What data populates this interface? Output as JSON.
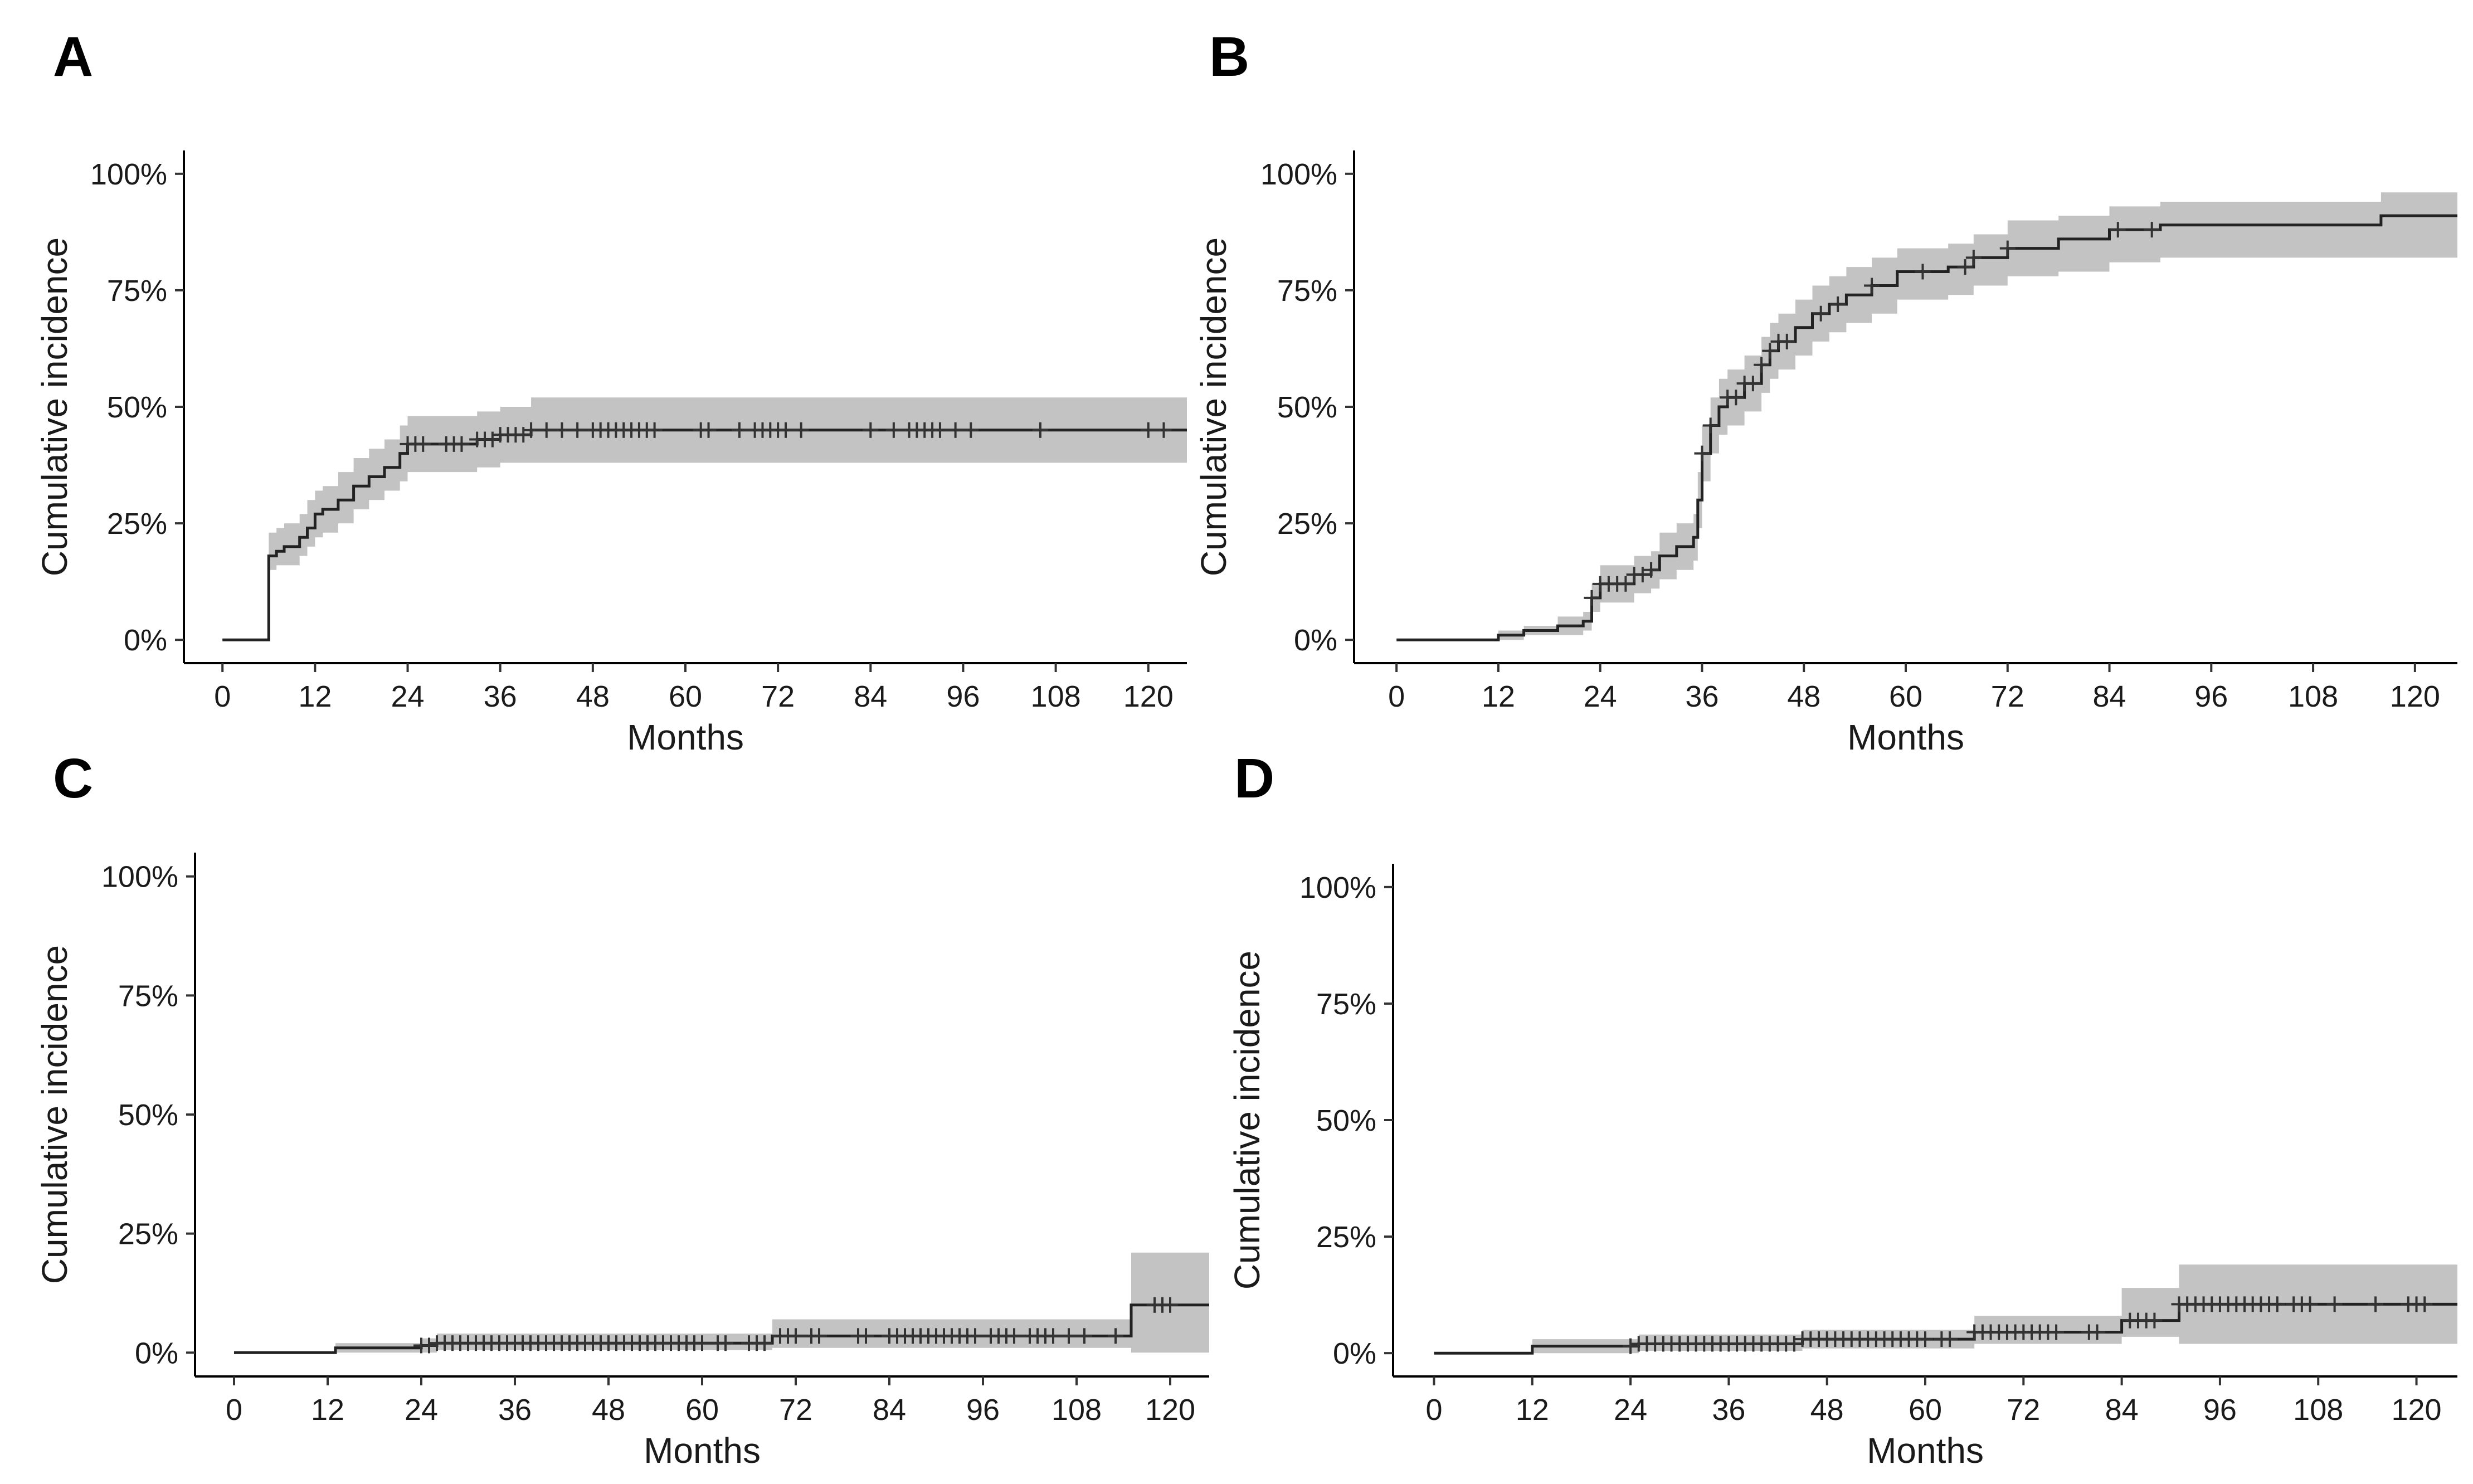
{
  "figure": {
    "panels": [
      "A",
      "B",
      "C",
      "D"
    ]
  },
  "chart_data": [
    {
      "panel": "A",
      "type": "line",
      "subtype": "step with confidence band",
      "xlabel": "Months",
      "ylabel": "Cumulative incidence",
      "xlim": [
        -5,
        125
      ],
      "ylim": [
        -0.05,
        1.05
      ],
      "x_ticks": [
        0,
        12,
        24,
        36,
        48,
        60,
        72,
        84,
        96,
        108,
        120
      ],
      "y_ticks": [
        0,
        0.25,
        0.5,
        0.75,
        1.0
      ],
      "y_tick_labels": [
        "0%",
        "25%",
        "50%",
        "75%",
        "100%"
      ],
      "x_end": 125,
      "steps": [
        [
          0,
          0
        ],
        [
          6,
          0.18
        ],
        [
          7,
          0.19
        ],
        [
          8,
          0.2
        ],
        [
          10,
          0.22
        ],
        [
          11,
          0.24
        ],
        [
          12,
          0.27
        ],
        [
          13,
          0.28
        ],
        [
          15,
          0.3
        ],
        [
          17,
          0.33
        ],
        [
          19,
          0.35
        ],
        [
          21,
          0.37
        ],
        [
          23,
          0.4
        ],
        [
          24,
          0.42
        ],
        [
          33,
          0.43
        ],
        [
          36,
          0.44
        ],
        [
          40,
          0.45
        ]
      ],
      "lower": [
        [
          0,
          0
        ],
        [
          6,
          0.15
        ],
        [
          7,
          0.16
        ],
        [
          8,
          0.16
        ],
        [
          10,
          0.18
        ],
        [
          11,
          0.2
        ],
        [
          12,
          0.22
        ],
        [
          13,
          0.23
        ],
        [
          15,
          0.25
        ],
        [
          17,
          0.28
        ],
        [
          19,
          0.3
        ],
        [
          21,
          0.32
        ],
        [
          23,
          0.34
        ],
        [
          24,
          0.36
        ],
        [
          33,
          0.37
        ],
        [
          36,
          0.38
        ],
        [
          40,
          0.38
        ]
      ],
      "upper": [
        [
          0,
          0
        ],
        [
          6,
          0.23
        ],
        [
          7,
          0.24
        ],
        [
          8,
          0.25
        ],
        [
          10,
          0.27
        ],
        [
          11,
          0.3
        ],
        [
          12,
          0.32
        ],
        [
          13,
          0.33
        ],
        [
          15,
          0.36
        ],
        [
          17,
          0.39
        ],
        [
          19,
          0.41
        ],
        [
          21,
          0.43
        ],
        [
          23,
          0.46
        ],
        [
          24,
          0.48
        ],
        [
          33,
          0.49
        ],
        [
          36,
          0.5
        ],
        [
          40,
          0.52
        ]
      ],
      "censor_times": [
        24,
        25,
        26,
        29,
        30,
        31,
        33,
        34,
        35,
        36,
        37,
        38,
        39,
        40,
        42,
        44,
        46,
        48,
        49,
        50,
        51,
        52,
        53,
        54,
        55,
        56,
        62,
        63,
        67,
        69,
        70,
        71,
        72,
        73,
        75,
        84,
        87,
        89,
        90,
        91,
        92,
        93,
        95,
        97,
        106,
        120,
        122
      ]
    },
    {
      "panel": "B",
      "type": "line",
      "subtype": "step with confidence band",
      "xlabel": "Months",
      "ylabel": "Cumulative incidence",
      "xlim": [
        -5,
        125
      ],
      "ylim": [
        -0.05,
        1.05
      ],
      "x_ticks": [
        0,
        12,
        24,
        36,
        48,
        60,
        72,
        84,
        96,
        108,
        120
      ],
      "y_ticks": [
        0,
        0.25,
        0.5,
        0.75,
        1.0
      ],
      "y_tick_labels": [
        "0%",
        "25%",
        "50%",
        "75%",
        "100%"
      ],
      "x_end": 125,
      "steps": [
        [
          0,
          0
        ],
        [
          12,
          0.01
        ],
        [
          15,
          0.02
        ],
        [
          19,
          0.03
        ],
        [
          22,
          0.04
        ],
        [
          23,
          0.09
        ],
        [
          24,
          0.12
        ],
        [
          28,
          0.14
        ],
        [
          30,
          0.15
        ],
        [
          31,
          0.18
        ],
        [
          33,
          0.2
        ],
        [
          35,
          0.22
        ],
        [
          35.5,
          0.3
        ],
        [
          36,
          0.4
        ],
        [
          37,
          0.46
        ],
        [
          38,
          0.5
        ],
        [
          39,
          0.52
        ],
        [
          41,
          0.55
        ],
        [
          43,
          0.59
        ],
        [
          44,
          0.62
        ],
        [
          45,
          0.64
        ],
        [
          47,
          0.67
        ],
        [
          49,
          0.7
        ],
        [
          51,
          0.72
        ],
        [
          53,
          0.74
        ],
        [
          56,
          0.76
        ],
        [
          59,
          0.79
        ],
        [
          65,
          0.8
        ],
        [
          68,
          0.82
        ],
        [
          72,
          0.84
        ],
        [
          78,
          0.86
        ],
        [
          84,
          0.88
        ],
        [
          90,
          0.89
        ],
        [
          116,
          0.91
        ]
      ],
      "lower": [
        [
          0,
          0
        ],
        [
          12,
          0.0
        ],
        [
          15,
          0.01
        ],
        [
          19,
          0.01
        ],
        [
          22,
          0.02
        ],
        [
          23,
          0.06
        ],
        [
          24,
          0.08
        ],
        [
          28,
          0.1
        ],
        [
          30,
          0.11
        ],
        [
          31,
          0.13
        ],
        [
          33,
          0.15
        ],
        [
          35,
          0.17
        ],
        [
          35.5,
          0.24
        ],
        [
          36,
          0.34
        ],
        [
          37,
          0.4
        ],
        [
          38,
          0.44
        ],
        [
          39,
          0.46
        ],
        [
          41,
          0.49
        ],
        [
          43,
          0.53
        ],
        [
          44,
          0.56
        ],
        [
          45,
          0.58
        ],
        [
          47,
          0.61
        ],
        [
          49,
          0.64
        ],
        [
          51,
          0.66
        ],
        [
          53,
          0.68
        ],
        [
          56,
          0.7
        ],
        [
          59,
          0.73
        ],
        [
          65,
          0.74
        ],
        [
          68,
          0.76
        ],
        [
          72,
          0.78
        ],
        [
          78,
          0.79
        ],
        [
          84,
          0.81
        ],
        [
          90,
          0.82
        ],
        [
          116,
          0.82
        ]
      ],
      "upper": [
        [
          0,
          0
        ],
        [
          12,
          0.02
        ],
        [
          15,
          0.03
        ],
        [
          19,
          0.05
        ],
        [
          22,
          0.06
        ],
        [
          23,
          0.12
        ],
        [
          24,
          0.16
        ],
        [
          28,
          0.18
        ],
        [
          30,
          0.19
        ],
        [
          31,
          0.23
        ],
        [
          33,
          0.25
        ],
        [
          35,
          0.27
        ],
        [
          35.5,
          0.36
        ],
        [
          36,
          0.46
        ],
        [
          37,
          0.52
        ],
        [
          38,
          0.56
        ],
        [
          39,
          0.58
        ],
        [
          41,
          0.61
        ],
        [
          43,
          0.65
        ],
        [
          44,
          0.68
        ],
        [
          45,
          0.7
        ],
        [
          47,
          0.73
        ],
        [
          49,
          0.76
        ],
        [
          51,
          0.78
        ],
        [
          53,
          0.8
        ],
        [
          56,
          0.82
        ],
        [
          59,
          0.84
        ],
        [
          65,
          0.85
        ],
        [
          68,
          0.87
        ],
        [
          72,
          0.9
        ],
        [
          78,
          0.91
        ],
        [
          84,
          0.93
        ],
        [
          90,
          0.94
        ],
        [
          116,
          0.96
        ]
      ],
      "censor_times": [
        23,
        24,
        25,
        26,
        27,
        28,
        29,
        30,
        36,
        37,
        39,
        40,
        41,
        42,
        43,
        44,
        45,
        46,
        50,
        52,
        56,
        62,
        67,
        68,
        72,
        85,
        89
      ]
    },
    {
      "panel": "C",
      "type": "line",
      "subtype": "step with confidence band",
      "xlabel": "Months",
      "ylabel": "Cumulative incidence",
      "xlim": [
        -5,
        125
      ],
      "ylim": [
        -0.05,
        1.05
      ],
      "x_ticks": [
        0,
        12,
        24,
        36,
        48,
        60,
        72,
        84,
        96,
        108,
        120
      ],
      "y_ticks": [
        0,
        0.25,
        0.5,
        0.75,
        1.0
      ],
      "y_tick_labels": [
        "0%",
        "25%",
        "50%",
        "75%",
        "100%"
      ],
      "x_end": 125,
      "steps": [
        [
          0,
          0
        ],
        [
          13,
          0.01
        ],
        [
          24,
          0.015
        ],
        [
          26,
          0.02
        ],
        [
          69,
          0.035
        ],
        [
          115,
          0.1
        ]
      ],
      "lower": [
        [
          0,
          0
        ],
        [
          13,
          0.0
        ],
        [
          24,
          0.0
        ],
        [
          26,
          0.005
        ],
        [
          69,
          0.01
        ],
        [
          115,
          0.0
        ]
      ],
      "upper": [
        [
          0,
          0
        ],
        [
          13,
          0.02
        ],
        [
          24,
          0.03
        ],
        [
          26,
          0.04
        ],
        [
          69,
          0.07
        ],
        [
          115,
          0.21
        ]
      ],
      "censor_times": [
        24,
        25,
        26,
        27,
        28,
        29,
        30,
        31,
        32,
        33,
        34,
        35,
        36,
        37,
        38,
        39,
        40,
        41,
        42,
        43,
        44,
        45,
        46,
        47,
        48,
        49,
        50,
        51,
        52,
        53,
        54,
        55,
        56,
        57,
        58,
        59,
        60,
        62,
        63,
        66,
        67,
        68,
        70,
        71,
        72,
        74,
        75,
        80,
        81,
        84,
        85,
        86,
        87,
        88,
        89,
        90,
        91,
        92,
        93,
        94,
        95,
        97,
        98,
        99,
        100,
        102,
        103,
        104,
        105,
        107,
        109,
        113,
        118,
        119,
        120
      ]
    },
    {
      "panel": "D",
      "type": "line",
      "subtype": "step with confidence band",
      "xlabel": "Months",
      "ylabel": "Cumulative incidence",
      "xlim": [
        -5,
        125
      ],
      "ylim": [
        -0.05,
        1.05
      ],
      "x_ticks": [
        0,
        12,
        24,
        36,
        48,
        60,
        72,
        84,
        96,
        108,
        120
      ],
      "y_ticks": [
        0,
        0.25,
        0.5,
        0.75,
        1.0
      ],
      "y_tick_labels": [
        "0%",
        "25%",
        "50%",
        "75%",
        "100%"
      ],
      "x_end": 125,
      "steps": [
        [
          0,
          0
        ],
        [
          12,
          0.015
        ],
        [
          25,
          0.02
        ],
        [
          45,
          0.03
        ],
        [
          66,
          0.045
        ],
        [
          84,
          0.07
        ],
        [
          91,
          0.105
        ]
      ],
      "lower": [
        [
          0,
          0
        ],
        [
          12,
          0.0
        ],
        [
          25,
          0.005
        ],
        [
          45,
          0.01
        ],
        [
          66,
          0.02
        ],
        [
          84,
          0.035
        ],
        [
          91,
          0.02
        ]
      ],
      "upper": [
        [
          0,
          0
        ],
        [
          12,
          0.03
        ],
        [
          25,
          0.04
        ],
        [
          45,
          0.05
        ],
        [
          66,
          0.08
        ],
        [
          84,
          0.14
        ],
        [
          91,
          0.19
        ]
      ],
      "censor_times": [
        24,
        25,
        26,
        27,
        28,
        29,
        30,
        31,
        32,
        33,
        34,
        35,
        36,
        37,
        38,
        39,
        40,
        41,
        42,
        43,
        44,
        45,
        46,
        47,
        48,
        49,
        50,
        51,
        52,
        53,
        54,
        55,
        56,
        57,
        58,
        59,
        60,
        62,
        63,
        66,
        67,
        68,
        69,
        70,
        71,
        72,
        73,
        74,
        75,
        76,
        80,
        81,
        85,
        86,
        87,
        88,
        91,
        92,
        93,
        94,
        95,
        96,
        97,
        98,
        99,
        100,
        101,
        102,
        103,
        105,
        106,
        107,
        110,
        115,
        119,
        120,
        121
      ]
    }
  ]
}
